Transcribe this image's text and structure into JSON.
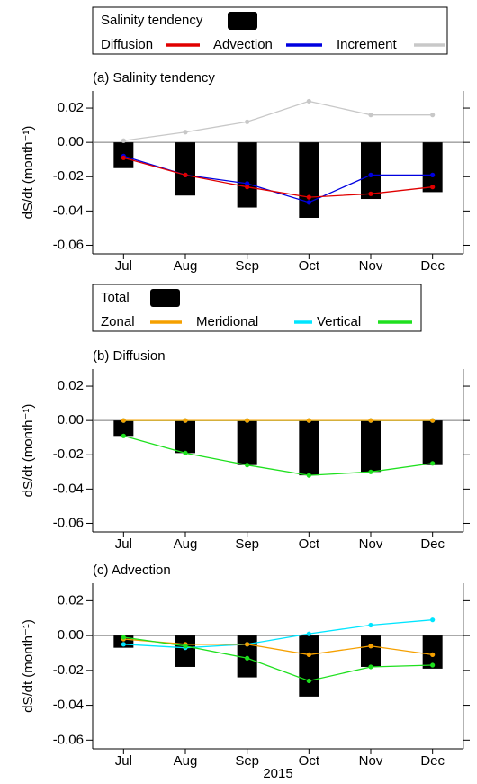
{
  "chart_data": [
    {
      "type": "combo",
      "title": "(a) Salinity tendency",
      "y_label": "dS/dt (month⁻¹)",
      "categories": [
        "Jul",
        "Aug",
        "Sep",
        "Oct",
        "Nov",
        "Dec"
      ],
      "ylim": [
        -0.065,
        0.03
      ],
      "yticks": [
        {
          "value": 0.02,
          "label": "0.02"
        },
        {
          "value": 0,
          "label": "0.00"
        },
        {
          "value": -0.02,
          "label": "-0.02"
        },
        {
          "value": -0.04,
          "label": "-0.04"
        },
        {
          "value": -0.06,
          "label": "-0.06"
        }
      ],
      "bars": {
        "name": "Salinity tendency",
        "color": "#000000",
        "values": [
          -0.015,
          -0.031,
          -0.038,
          -0.044,
          -0.033,
          -0.029
        ]
      },
      "series": [
        {
          "name": "Increment",
          "color": "#c8c8c8",
          "values": [
            0.001,
            0.006,
            0.012,
            0.024,
            0.016,
            0.016
          ]
        },
        {
          "name": "Advection",
          "color": "#0000e0",
          "values": [
            -0.008,
            -0.019,
            -0.024,
            -0.035,
            -0.019,
            -0.019
          ]
        },
        {
          "name": "Diffusion",
          "color": "#e00000",
          "values": [
            -0.009,
            -0.019,
            -0.026,
            -0.032,
            -0.03,
            -0.026
          ]
        }
      ],
      "legend": true
    },
    {
      "type": "combo",
      "title": "(b) Diffusion",
      "y_label": "dS/dt (month⁻¹)",
      "categories": [
        "Jul",
        "Aug",
        "Sep",
        "Oct",
        "Nov",
        "Dec"
      ],
      "ylim": [
        -0.065,
        0.03
      ],
      "yticks": [
        {
          "value": 0.02,
          "label": "0.02"
        },
        {
          "value": 0,
          "label": "0.00"
        },
        {
          "value": -0.02,
          "label": "-0.02"
        },
        {
          "value": -0.04,
          "label": "-0.04"
        },
        {
          "value": -0.06,
          "label": "-0.06"
        }
      ],
      "bars": {
        "name": "Total",
        "color": "#000000",
        "values": [
          -0.009,
          -0.019,
          -0.026,
          -0.032,
          -0.03,
          -0.026
        ]
      },
      "series": [
        {
          "name": "Meridional",
          "color": "#00e5ff",
          "values": [
            0,
            0,
            0,
            0,
            0,
            0
          ]
        },
        {
          "name": "Vertical",
          "color": "#1ee01e",
          "values": [
            -0.009,
            -0.019,
            -0.026,
            -0.032,
            -0.03,
            -0.025
          ]
        },
        {
          "name": "Zonal",
          "color": "#f5a000",
          "values": [
            0,
            0,
            0,
            0,
            0,
            0
          ]
        }
      ],
      "legend": true
    },
    {
      "type": "combo",
      "title": "(c) Advection",
      "y_label": "dS/dt (month⁻¹)",
      "x_label": "2015",
      "categories": [
        "Jul",
        "Aug",
        "Sep",
        "Oct",
        "Nov",
        "Dec"
      ],
      "ylim": [
        -0.065,
        0.03
      ],
      "yticks": [
        {
          "value": 0.02,
          "label": "0.02"
        },
        {
          "value": 0,
          "label": "0.00"
        },
        {
          "value": -0.02,
          "label": "-0.02"
        },
        {
          "value": -0.04,
          "label": "-0.04"
        },
        {
          "value": -0.06,
          "label": "-0.06"
        }
      ],
      "bars": {
        "color": "#000000",
        "values": [
          -0.007,
          -0.018,
          -0.024,
          -0.035,
          -0.018,
          -0.019
        ]
      },
      "series": [
        {
          "color": "#00e5ff",
          "values": [
            -0.005,
            -0.007,
            -0.005,
            0.001,
            0.006,
            0.009
          ]
        },
        {
          "color": "#f5a000",
          "values": [
            -0.002,
            -0.005,
            -0.005,
            -0.011,
            -0.006,
            -0.011
          ]
        },
        {
          "color": "#1ee01e",
          "values": [
            -0.001,
            -0.006,
            -0.013,
            -0.026,
            -0.018,
            -0.017
          ]
        }
      ],
      "legend": false
    }
  ]
}
